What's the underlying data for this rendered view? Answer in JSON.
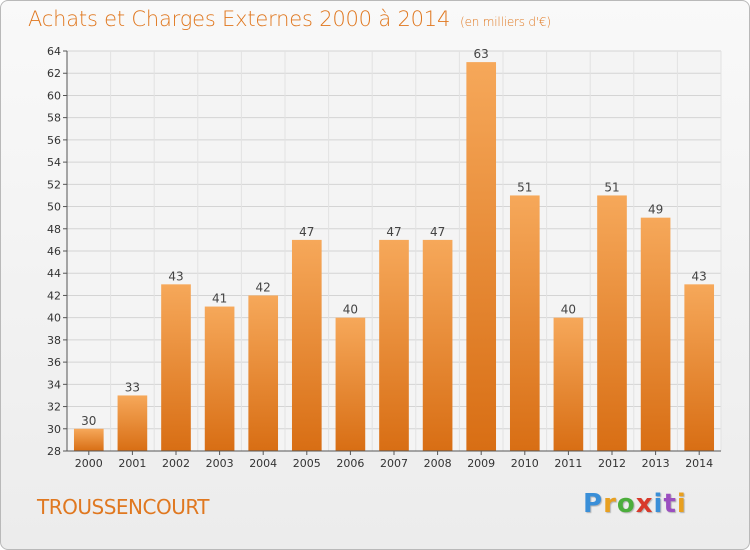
{
  "title": "Achats et Charges Externes 2000 à 2014",
  "unit": "(en milliers d'€)",
  "commune": "TROUSSENCOURT",
  "logo": {
    "letters": [
      "P",
      "r",
      "o",
      "x",
      "i",
      "t",
      "i"
    ]
  },
  "colors": {
    "bar": "#f0902c",
    "bar_top": "#f6a85a",
    "bar_bottom": "#d86e14",
    "accent": "#e07820"
  },
  "chart_data": {
    "type": "bar",
    "categories": [
      "2000",
      "2001",
      "2002",
      "2003",
      "2004",
      "2005",
      "2006",
      "2007",
      "2008",
      "2009",
      "2010",
      "2011",
      "2012",
      "2013",
      "2014"
    ],
    "values": [
      30,
      33,
      43,
      41,
      42,
      47,
      40,
      47,
      47,
      63,
      51,
      40,
      51,
      49,
      43
    ],
    "ylim": [
      28,
      64
    ],
    "yticks": [
      28,
      30,
      32,
      34,
      36,
      38,
      40,
      42,
      44,
      46,
      48,
      50,
      52,
      54,
      56,
      58,
      60,
      62,
      64
    ],
    "grid": true
  }
}
